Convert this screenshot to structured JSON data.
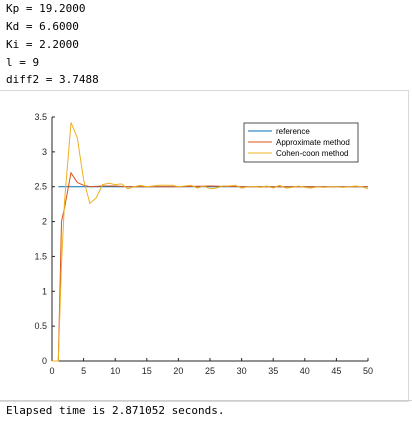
{
  "console": {
    "lines": [
      "Kp = 19.2000",
      "Kd = 6.6000",
      "Ki = 2.2000",
      "l = 9",
      "diff2 = 3.7488"
    ],
    "footer": "Elapsed time is 2.871052 seconds."
  },
  "chart_data": {
    "type": "line",
    "title": "",
    "xlabel": "",
    "ylabel": "",
    "xlim": [
      0,
      50
    ],
    "ylim": [
      0,
      3.5
    ],
    "xticks": [
      "0",
      "5",
      "10",
      "15",
      "20",
      "25",
      "30",
      "35",
      "40",
      "45",
      "50"
    ],
    "yticks": [
      "0",
      "0.5",
      "1",
      "1.5",
      "2",
      "2.5",
      "3",
      "3.5"
    ],
    "legend_position": "top-right",
    "series": [
      {
        "name": "reference",
        "color": "#0072bd",
        "x": [
          1,
          50
        ],
        "y": [
          2.5,
          2.5
        ]
      },
      {
        "name": "Approximate method",
        "color": "#d95319",
        "x": [
          0,
          1,
          1.5,
          2,
          3,
          4,
          5,
          6,
          8,
          10,
          12,
          15,
          20,
          25,
          30,
          35,
          40,
          45,
          50
        ],
        "y": [
          0,
          0,
          2.0,
          2.2,
          2.7,
          2.56,
          2.52,
          2.5,
          2.51,
          2.51,
          2.5,
          2.5,
          2.5,
          2.51,
          2.5,
          2.5,
          2.5,
          2.5,
          2.5
        ]
      },
      {
        "name": "Cohen-coon method",
        "color": "#edb120",
        "x": [
          0,
          1,
          1.5,
          2,
          3,
          4,
          5,
          6,
          7,
          8,
          9,
          10,
          11,
          12,
          13,
          14,
          15,
          16,
          17,
          18,
          19,
          20,
          21,
          22,
          23,
          24,
          25,
          26,
          27,
          28,
          29,
          30,
          31,
          32,
          33,
          34,
          35,
          36,
          37,
          38,
          39,
          40,
          41,
          42,
          43,
          44,
          45,
          46,
          47,
          48,
          49,
          50
        ],
        "y": [
          0,
          0,
          1.4,
          2.3,
          3.42,
          3.2,
          2.6,
          2.26,
          2.34,
          2.53,
          2.55,
          2.53,
          2.54,
          2.47,
          2.5,
          2.52,
          2.5,
          2.51,
          2.52,
          2.52,
          2.52,
          2.5,
          2.51,
          2.52,
          2.48,
          2.51,
          2.47,
          2.48,
          2.51,
          2.51,
          2.52,
          2.48,
          2.5,
          2.5,
          2.49,
          2.51,
          2.48,
          2.52,
          2.48,
          2.49,
          2.51,
          2.49,
          2.48,
          2.5,
          2.49,
          2.5,
          2.5,
          2.49,
          2.5,
          2.51,
          2.5,
          2.47
        ]
      }
    ]
  }
}
